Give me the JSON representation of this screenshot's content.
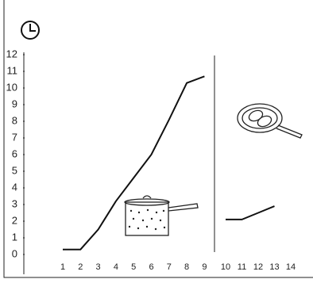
{
  "chart_data": {
    "type": "line",
    "categories": [
      "1",
      "2",
      "3",
      "4",
      "5",
      "6",
      "7",
      "8",
      "9",
      "10",
      "11",
      "12",
      "13",
      "14"
    ],
    "series": [
      {
        "color": "#111111",
        "values": [
          0.3,
          0.3,
          1.5,
          3.2,
          4.6,
          6,
          8.1,
          10.3,
          10.7,
          null,
          null,
          null,
          null,
          null
        ]
      },
      {
        "color": "#111111",
        "values": [
          null,
          null,
          null,
          null,
          null,
          null,
          null,
          null,
          null,
          2.1,
          2.1,
          2.5,
          2.9,
          null
        ]
      }
    ],
    "ylim": [
      0,
      12
    ],
    "yticks": [
      0,
      1,
      2,
      3,
      4,
      5,
      6,
      7,
      8,
      9,
      10,
      11,
      12
    ]
  }
}
